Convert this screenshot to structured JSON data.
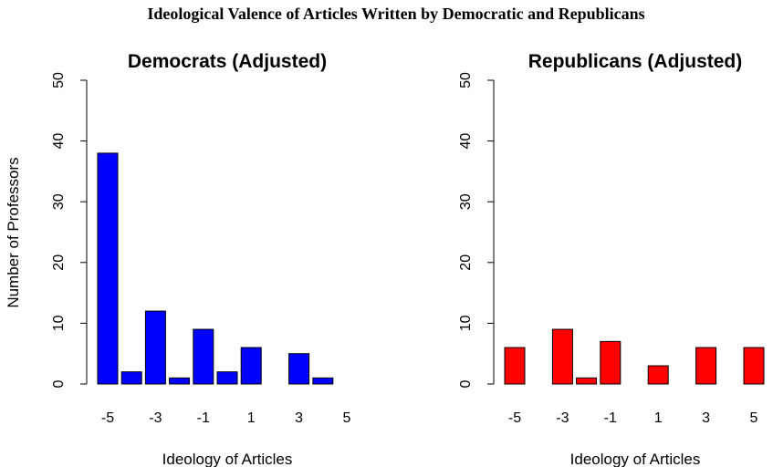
{
  "figure_title": "Ideological Valence of Articles Written by Democratic and Republicans",
  "chart_data": [
    {
      "type": "bar",
      "title": "Democrats (Adjusted)",
      "xlabel": "Ideology of Articles",
      "ylabel": "Number of Professors",
      "categories": [
        -5,
        -4,
        -3,
        -2,
        -1,
        0,
        1,
        2,
        3,
        4,
        5
      ],
      "values": [
        38,
        2,
        12,
        1,
        9,
        2,
        6,
        0,
        5,
        1,
        0
      ],
      "x_tick_labels": [
        "-5",
        "-3",
        "-1",
        "1",
        "3",
        "5"
      ],
      "ylim": [
        0,
        50
      ],
      "y_ticks": [
        0,
        10,
        20,
        30,
        40,
        50
      ],
      "color": "#0000ff"
    },
    {
      "type": "bar",
      "title": "Republicans (Adjusted)",
      "xlabel": "Ideology of Articles",
      "ylabel": "",
      "categories": [
        -5,
        -4,
        -3,
        -2,
        -1,
        0,
        1,
        2,
        3,
        4,
        5
      ],
      "values": [
        6,
        0,
        9,
        1,
        7,
        0,
        3,
        0,
        6,
        0,
        6
      ],
      "x_tick_labels": [
        "-5",
        "-3",
        "-1",
        "1",
        "3",
        "5"
      ],
      "ylim": [
        0,
        50
      ],
      "y_ticks": [
        0,
        10,
        20,
        30,
        40,
        50
      ],
      "color": "#ff0000"
    }
  ]
}
